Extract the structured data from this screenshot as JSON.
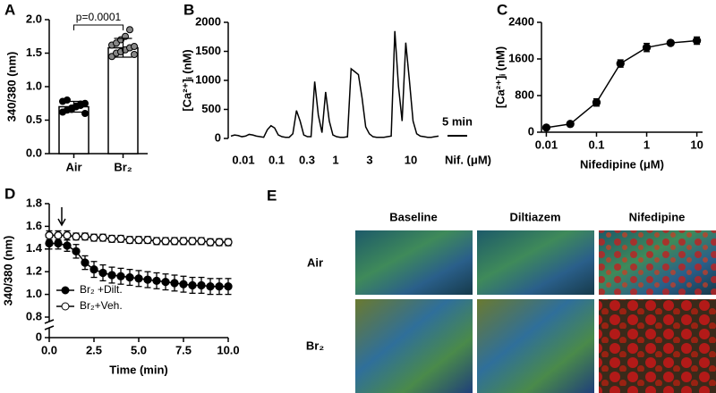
{
  "chart_data": [
    {
      "label": "A",
      "type": "bar",
      "ylabel": "340/380 (nm)",
      "categories": [
        "Air",
        "Br₂"
      ],
      "values": [
        0.7,
        1.58
      ],
      "errors": [
        0.08,
        0.14
      ],
      "points": [
        [
          0.62,
          0.65,
          0.68,
          0.7,
          0.72,
          0.75,
          0.78,
          0.8,
          0.66,
          0.71,
          0.74,
          0.6
        ],
        [
          1.45,
          1.5,
          1.52,
          1.55,
          1.58,
          1.6,
          1.62,
          1.65,
          1.7,
          1.75,
          1.85,
          1.48
        ]
      ],
      "ylim": [
        0,
        2.0
      ],
      "yticks": [
        {
          "value": 0,
          "label": "0.0"
        },
        0.5,
        {
          "value": 1,
          "label": "1.0"
        },
        1.5,
        {
          "value": 2,
          "label": "2.0"
        }
      ],
      "annotation": "p=0.0001"
    },
    {
      "label": "B",
      "type": "line",
      "ylabel": "[Ca²⁺]ᵢ (nM)",
      "series": [
        {
          "color": "#000000",
          "marker": "none",
          "values": [
            40,
            60,
            50,
            30,
            40,
            70,
            60,
            40,
            30,
            20,
            150,
            220,
            180,
            60,
            30,
            20,
            20,
            80,
            480,
            300,
            60,
            30,
            30,
            980,
            400,
            100,
            800,
            300,
            60,
            30,
            20,
            20,
            30,
            1200,
            1150,
            1100,
            700,
            200,
            80,
            30,
            20,
            20,
            20,
            30,
            40,
            1850,
            900,
            300,
            1650,
            1000,
            300,
            80,
            40,
            30,
            20,
            20,
            30,
            40
          ]
        }
      ],
      "ylim": [
        0,
        2000
      ],
      "yticks": [
        0,
        500,
        1000,
        1500,
        2000
      ],
      "x_labels": [
        "0.01",
        "0.1",
        "0.3",
        "1",
        "3",
        "10"
      ],
      "x_title": "Nif. (μM)",
      "scale_bar": "5 min"
    },
    {
      "label": "C",
      "type": "line",
      "xlabel": "Nifedipine (μM)",
      "ylabel": "[Ca²⁺]ᵢ (nM)",
      "xlog": true,
      "xlim": [
        0.008,
        13
      ],
      "xticks": [
        0.01,
        0.1,
        1,
        10
      ],
      "ylim": [
        0,
        2400
      ],
      "yticks": [
        0,
        800,
        1600,
        2400
      ],
      "series": [
        {
          "color": "#000000",
          "marker": "filled",
          "x": [
            0.01,
            0.03,
            0.1,
            0.3,
            1,
            3,
            10
          ],
          "values": [
            100,
            180,
            650,
            1500,
            1850,
            1950,
            2000
          ],
          "errors": [
            40,
            30,
            80,
            80,
            90,
            50,
            80
          ]
        }
      ]
    },
    {
      "label": "D",
      "type": "line",
      "xlabel": "Time (min)",
      "ylabel": "340/380 (nm)",
      "xlim": [
        0,
        10
      ],
      "xticks": [
        {
          "value": 0,
          "label": "0.0"
        },
        2.5,
        {
          "value": 5,
          "label": "5.0"
        },
        7.5,
        {
          "value": 10,
          "label": "10.0"
        }
      ],
      "ylim": [
        0.8,
        1.8
      ],
      "yticks": [
        0.8,
        {
          "value": 1,
          "label": "1.0"
        },
        1.2,
        1.4,
        1.6,
        1.8
      ],
      "ylim_lower": [
        0,
        0.1
      ],
      "yticks_lower": [
        0
      ],
      "legend": "lower left",
      "arrow_x": 0.7,
      "series": [
        {
          "name": "Br₂ +Dilt.",
          "color": "#000000",
          "marker": "filled",
          "x": [
            0,
            0.5,
            1,
            1.5,
            2,
            2.5,
            3,
            3.5,
            4,
            4.5,
            5,
            5.5,
            6,
            6.5,
            7,
            7.5,
            8,
            8.5,
            9,
            9.5,
            10
          ],
          "values": [
            1.45,
            1.45,
            1.43,
            1.38,
            1.28,
            1.22,
            1.19,
            1.17,
            1.16,
            1.15,
            1.14,
            1.13,
            1.12,
            1.11,
            1.1,
            1.09,
            1.08,
            1.08,
            1.07,
            1.07,
            1.07
          ],
          "errors": [
            0.05,
            0.05,
            0.05,
            0.06,
            0.06,
            0.07,
            0.07,
            0.07,
            0.07,
            0.07,
            0.07,
            0.07,
            0.07,
            0.07,
            0.07,
            0.07,
            0.07,
            0.07,
            0.07,
            0.07,
            0.07
          ]
        },
        {
          "name": "Br₂+Veh.",
          "color": "#000000",
          "marker": "open",
          "x": [
            0,
            0.5,
            1,
            1.5,
            2,
            2.5,
            3,
            3.5,
            4,
            4.5,
            5,
            5.5,
            6,
            6.5,
            7,
            7.5,
            8,
            8.5,
            9,
            9.5,
            10
          ],
          "values": [
            1.52,
            1.52,
            1.52,
            1.51,
            1.51,
            1.5,
            1.5,
            1.49,
            1.49,
            1.48,
            1.48,
            1.48,
            1.47,
            1.47,
            1.47,
            1.47,
            1.47,
            1.47,
            1.46,
            1.46,
            1.46
          ],
          "errors": [
            0.04,
            0.04,
            0.04,
            0.03,
            0.03,
            0.03,
            0.03,
            0.03,
            0.03,
            0.03,
            0.03,
            0.03,
            0.03,
            0.03,
            0.03,
            0.03,
            0.03,
            0.03,
            0.03,
            0.03,
            0.03
          ]
        }
      ]
    }
  ],
  "image_panel": {
    "label": "E",
    "columns": [
      "Baseline",
      "Diltiazem",
      "Nifedipine"
    ],
    "rows": [
      "Air",
      "Br₂"
    ]
  }
}
